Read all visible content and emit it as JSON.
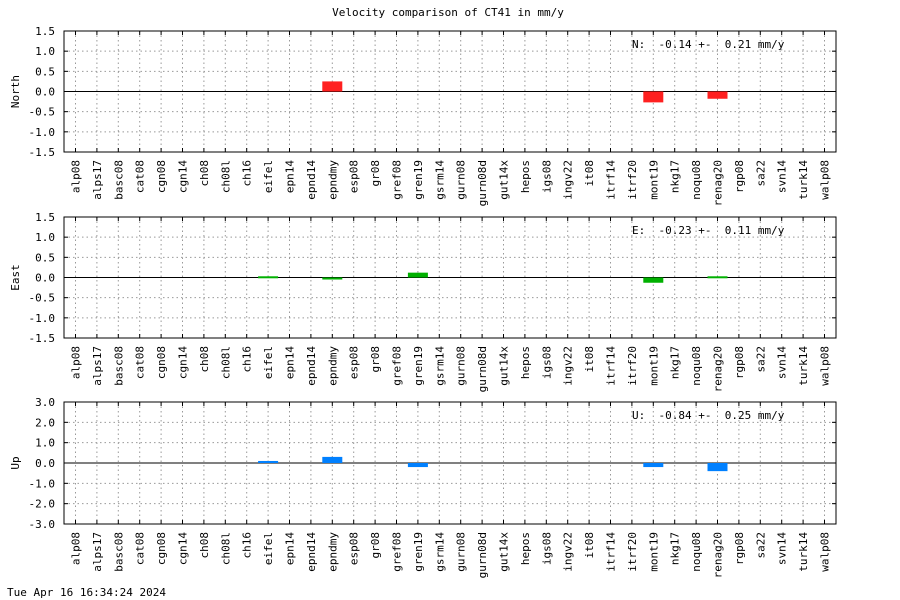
{
  "chart_data": {
    "title": "Velocity comparison of CT41 in mm/y",
    "categories": [
      "alp08",
      "alps17",
      "basc08",
      "cat08",
      "cgn08",
      "cgn14",
      "ch08",
      "ch08l",
      "ch16",
      "eifel",
      "epn14",
      "epnd14",
      "epndmy",
      "esp08",
      "gr08",
      "gref08",
      "gren19",
      "gsrm14",
      "gurn08",
      "gurn08d",
      "gut14x",
      "hepos",
      "igs08",
      "ingv22",
      "it08",
      "itrf14",
      "itrf20",
      "mont19",
      "nkg17",
      "noqu08",
      "renag20",
      "rgp08",
      "sa22",
      "svn14",
      "turk14",
      "walp08"
    ],
    "panels": [
      {
        "type": "bar",
        "ylabel": "North",
        "ylim": [
          -1.5,
          1.5
        ],
        "yticks": [
          "1.5",
          "1.0",
          "0.5",
          "0.0",
          "-0.5",
          "-1.0",
          "-1.5"
        ],
        "color": "#ff2020",
        "stat": "N:  -0.14 +-  0.21 mm/y",
        "values": [
          null,
          null,
          null,
          null,
          null,
          null,
          null,
          null,
          null,
          null,
          null,
          null,
          0.25,
          null,
          null,
          null,
          null,
          null,
          null,
          null,
          null,
          null,
          null,
          null,
          null,
          null,
          null,
          -0.27,
          null,
          null,
          -0.18,
          null,
          null,
          null,
          null,
          null
        ]
      },
      {
        "type": "bar",
        "ylabel": "East",
        "ylim": [
          -1.5,
          1.5
        ],
        "yticks": [
          "1.5",
          "1.0",
          "0.5",
          "0.0",
          "-0.5",
          "-1.0",
          "-1.5"
        ],
        "color": "#00b000",
        "stat": "E:  -0.23 +-  0.11 mm/y",
        "values": [
          null,
          null,
          null,
          null,
          null,
          null,
          null,
          null,
          null,
          0.03,
          null,
          null,
          -0.05,
          null,
          null,
          null,
          0.12,
          null,
          null,
          null,
          null,
          null,
          null,
          null,
          null,
          null,
          null,
          -0.13,
          null,
          null,
          0.03,
          null,
          null,
          null,
          null,
          null
        ]
      },
      {
        "type": "bar",
        "ylabel": "Up",
        "ylim": [
          -3.0,
          3.0
        ],
        "yticks": [
          "3.0",
          "2.0",
          "1.0",
          "0.0",
          "-1.0",
          "-2.0",
          "-3.0"
        ],
        "color": "#0080ff",
        "stat": "U:  -0.84 +-  0.25 mm/y",
        "values": [
          null,
          null,
          null,
          null,
          null,
          null,
          null,
          null,
          null,
          0.1,
          null,
          null,
          0.3,
          null,
          null,
          null,
          -0.2,
          null,
          null,
          null,
          null,
          null,
          null,
          null,
          null,
          null,
          null,
          -0.2,
          null,
          null,
          -0.4,
          null,
          null,
          null,
          null,
          null
        ]
      }
    ],
    "grid": true
  },
  "footer": {
    "timestamp": "Tue Apr 16 16:34:24 2024"
  }
}
